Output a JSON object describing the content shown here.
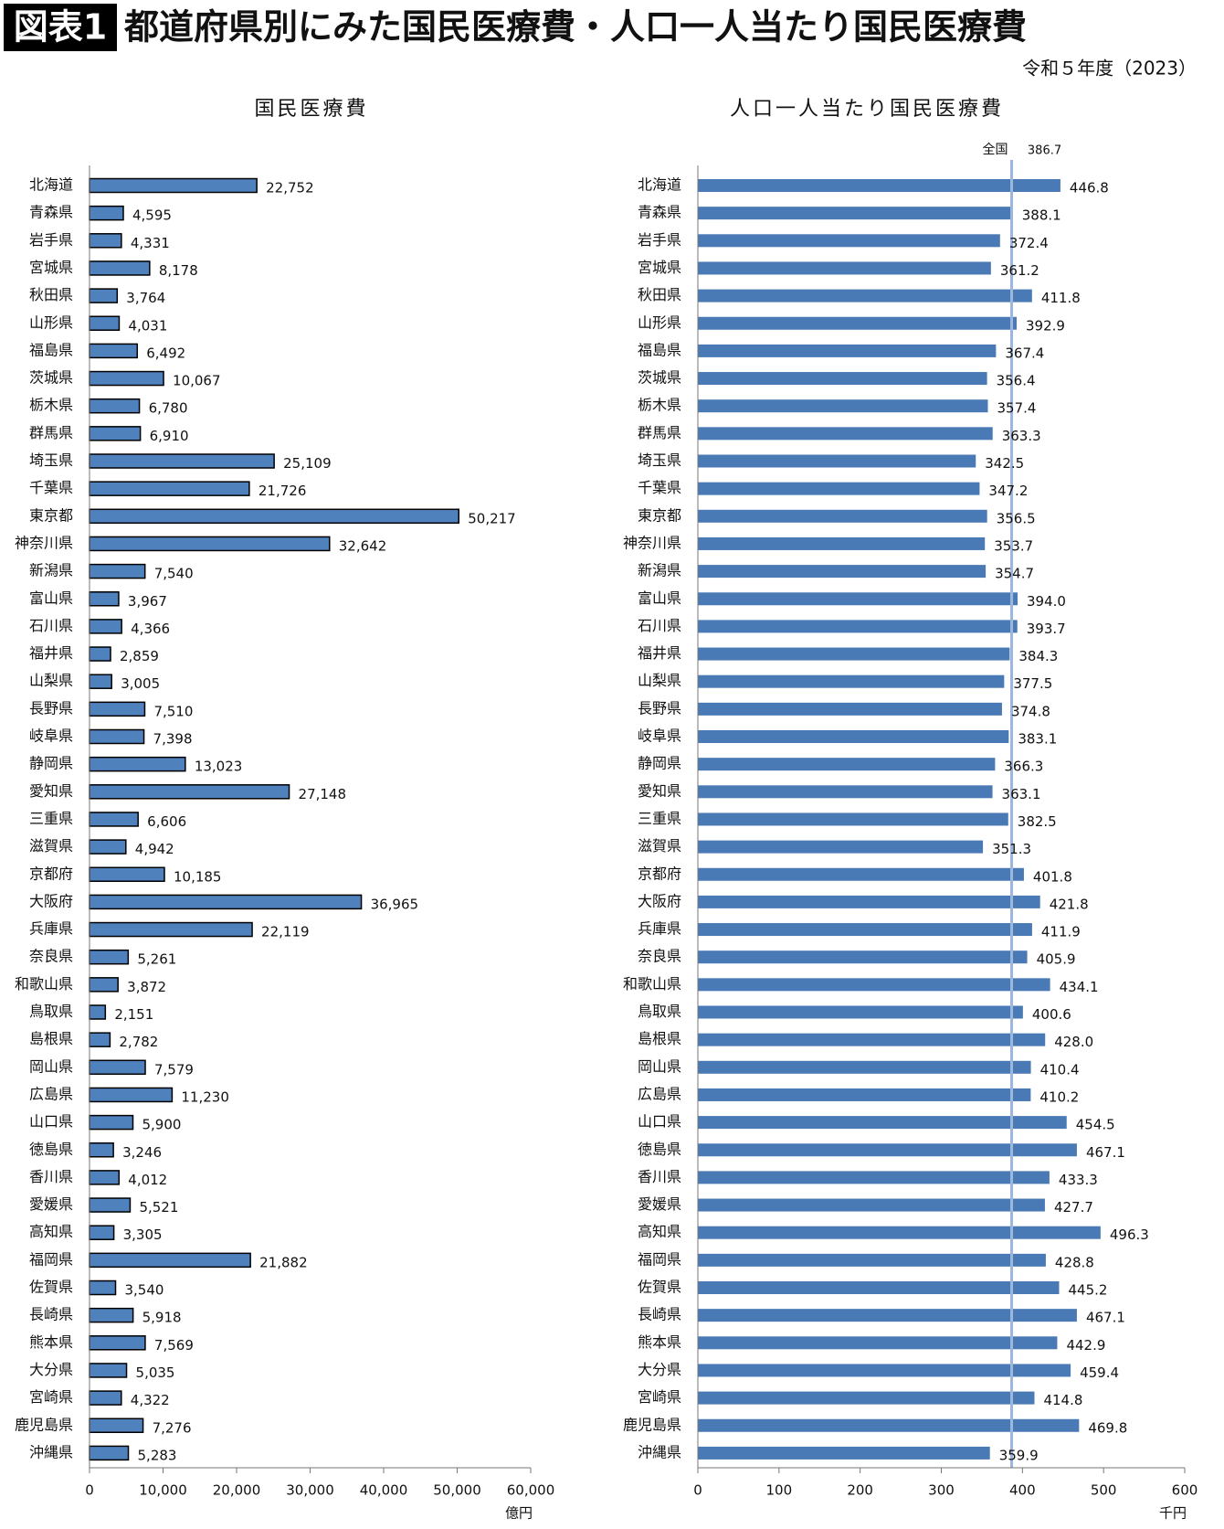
{
  "header": {
    "badge": "図表1",
    "title": "都道府県別にみた国民医療費・人口一人当たり国民医療費",
    "subtitle": "令和５年度（2023）"
  },
  "chart_data": [
    {
      "type": "bar",
      "orientation": "horizontal",
      "title": "国民医療費",
      "unit": "億円",
      "color": "#4f81bd",
      "border": "#000000",
      "categories": [
        "北海道",
        "青森県",
        "岩手県",
        "宮城県",
        "秋田県",
        "山形県",
        "福島県",
        "茨城県",
        "栃木県",
        "群馬県",
        "埼玉県",
        "千葉県",
        "東京都",
        "神奈川県",
        "新潟県",
        "富山県",
        "石川県",
        "福井県",
        "山梨県",
        "長野県",
        "岐阜県",
        "静岡県",
        "愛知県",
        "三重県",
        "滋賀県",
        "京都府",
        "大阪府",
        "兵庫県",
        "奈良県",
        "和歌山県",
        "鳥取県",
        "島根県",
        "岡山県",
        "広島県",
        "山口県",
        "徳島県",
        "香川県",
        "愛媛県",
        "高知県",
        "福岡県",
        "佐賀県",
        "長崎県",
        "熊本県",
        "大分県",
        "宮崎県",
        "鹿児島県",
        "沖縄県"
      ],
      "values": [
        22752,
        4595,
        4331,
        8178,
        3764,
        4031,
        6492,
        10067,
        6780,
        6910,
        25109,
        21726,
        50217,
        32642,
        7540,
        3967,
        4366,
        2859,
        3005,
        7510,
        7398,
        13023,
        27148,
        6606,
        4942,
        10185,
        36965,
        22119,
        5261,
        3872,
        2151,
        2782,
        7579,
        11230,
        5900,
        3246,
        4012,
        5521,
        3305,
        21882,
        3540,
        5918,
        7569,
        5035,
        4322,
        7276,
        5283
      ],
      "value_labels": [
        "22,752",
        "4,595",
        "4,331",
        "8,178",
        "3,764",
        "4,031",
        "6,492",
        "10,067",
        "6,780",
        "6,910",
        "25,109",
        "21,726",
        "50,217",
        "32,642",
        "7,540",
        "3,967",
        "4,366",
        "2,859",
        "3,005",
        "7,510",
        "7,398",
        "13,023",
        "27,148",
        "6,606",
        "4,942",
        "10,185",
        "36,965",
        "22,119",
        "5,261",
        "3,872",
        "2,151",
        "2,782",
        "7,579",
        "11,230",
        "5,900",
        "3,246",
        "4,012",
        "5,521",
        "3,305",
        "21,882",
        "3,540",
        "5,918",
        "7,569",
        "5,035",
        "4,322",
        "7,276",
        "5,283"
      ],
      "xlim": [
        0,
        60000
      ],
      "xticks": [
        0,
        {
          "value": 10000,
          "label": "10,000"
        },
        {
          "value": 20000,
          "label": "20,000"
        },
        {
          "value": 30000,
          "label": "30,000"
        },
        {
          "value": 40000,
          "label": "40,000"
        },
        {
          "value": 50000,
          "label": "50,000"
        },
        {
          "value": 60000,
          "label": "60,000"
        }
      ]
    },
    {
      "type": "bar",
      "orientation": "horizontal",
      "title": "人口一人当たり国民医療費",
      "unit": "千円",
      "color": "#4a7ab5",
      "categories": [
        "北海道",
        "青森県",
        "岩手県",
        "宮城県",
        "秋田県",
        "山形県",
        "福島県",
        "茨城県",
        "栃木県",
        "群馬県",
        "埼玉県",
        "千葉県",
        "東京都",
        "神奈川県",
        "新潟県",
        "富山県",
        "石川県",
        "福井県",
        "山梨県",
        "長野県",
        "岐阜県",
        "静岡県",
        "愛知県",
        "三重県",
        "滋賀県",
        "京都府",
        "大阪府",
        "兵庫県",
        "奈良県",
        "和歌山県",
        "鳥取県",
        "島根県",
        "岡山県",
        "広島県",
        "山口県",
        "徳島県",
        "香川県",
        "愛媛県",
        "高知県",
        "福岡県",
        "佐賀県",
        "長崎県",
        "熊本県",
        "大分県",
        "宮崎県",
        "鹿児島県",
        "沖縄県"
      ],
      "values": [
        446.8,
        388.1,
        372.4,
        361.2,
        411.8,
        392.9,
        367.4,
        356.4,
        357.4,
        363.3,
        342.5,
        347.2,
        356.5,
        353.7,
        354.7,
        394.0,
        393.7,
        384.3,
        377.5,
        374.8,
        383.1,
        366.3,
        363.1,
        382.5,
        351.3,
        401.8,
        421.8,
        411.9,
        405.9,
        434.1,
        400.6,
        428.0,
        410.4,
        410.2,
        454.5,
        467.1,
        433.3,
        427.7,
        496.3,
        428.8,
        445.2,
        467.1,
        442.9,
        459.4,
        414.8,
        469.8,
        359.9
      ],
      "value_labels": [
        "446.8",
        "388.1",
        "372.4",
        "361.2",
        "411.8",
        "392.9",
        "367.4",
        "356.4",
        "357.4",
        "363.3",
        "342.5",
        "347.2",
        "356.5",
        "353.7",
        "354.7",
        "394.0",
        "393.7",
        "384.3",
        "377.5",
        "374.8",
        "383.1",
        "366.3",
        "363.1",
        "382.5",
        "351.3",
        "401.8",
        "421.8",
        "411.9",
        "405.9",
        "434.1",
        "400.6",
        "428.0",
        "410.4",
        "410.2",
        "454.5",
        "467.1",
        "433.3",
        "427.7",
        "496.3",
        "428.8",
        "445.2",
        "467.1",
        "442.9",
        "459.4",
        "414.8",
        "469.8",
        "359.9"
      ],
      "xlim": [
        0,
        600
      ],
      "xticks": [
        0,
        100,
        200,
        300,
        400,
        500,
        600
      ],
      "reference": {
        "label": "全国",
        "value": 386.7,
        "color": "#9bb7dd"
      }
    }
  ]
}
